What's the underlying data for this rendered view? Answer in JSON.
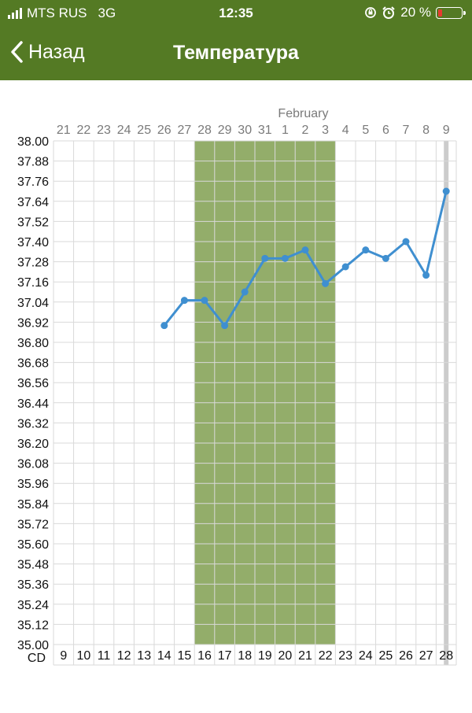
{
  "status_bar": {
    "carrier": "MTS RUS",
    "network": "3G",
    "time": "12:35",
    "battery": "20 %",
    "icons": [
      "signal-icon",
      "rotation-lock-icon",
      "alarm-icon",
      "battery-icon"
    ],
    "battery_color": "#e53b2f"
  },
  "nav": {
    "back_label": "Назад",
    "title": "Температура",
    "color": "#547a24"
  },
  "chart_data": {
    "type": "line",
    "month_label": "February",
    "dates": [
      "21",
      "22",
      "23",
      "24",
      "25",
      "26",
      "27",
      "28",
      "29",
      "30",
      "31",
      "1",
      "2",
      "3",
      "4",
      "5",
      "6",
      "7",
      "8",
      "9"
    ],
    "cycle_days": [
      "9",
      "10",
      "11",
      "12",
      "13",
      "14",
      "15",
      "16",
      "17",
      "18",
      "19",
      "20",
      "21",
      "22",
      "23",
      "24",
      "25",
      "26",
      "27",
      "28"
    ],
    "cycle_axis_label": "CD",
    "y_ticks": [
      "38.00",
      "37.88",
      "37.76",
      "37.64",
      "37.52",
      "37.40",
      "37.28",
      "37.16",
      "37.04",
      "36.92",
      "36.80",
      "36.68",
      "36.56",
      "36.44",
      "36.32",
      "36.20",
      "36.08",
      "35.96",
      "35.84",
      "35.72",
      "35.60",
      "35.48",
      "35.36",
      "35.24",
      "35.12",
      "35.00"
    ],
    "ylim": [
      35.0,
      38.0
    ],
    "series": [
      {
        "values": [
          null,
          null,
          null,
          null,
          null,
          36.9,
          37.05,
          37.05,
          36.9,
          37.1,
          37.3,
          37.3,
          37.35,
          37.15,
          37.25,
          37.35,
          37.3,
          37.4,
          37.2,
          37.7
        ],
        "color": "#3f8fd0"
      }
    ],
    "highlight_range": {
      "from": "28",
      "to": "3",
      "color": "#93ad6a"
    },
    "current_day": {
      "date": "9",
      "color": "#cccccc"
    },
    "grid": true
  }
}
